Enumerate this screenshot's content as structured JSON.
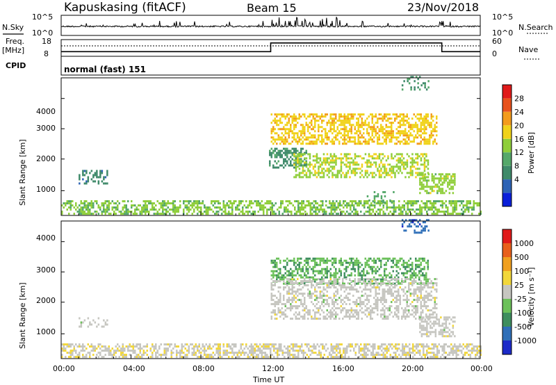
{
  "header": {
    "station": "Kapuskasing (fitACF)",
    "beam": "Beam 15",
    "date": "23/Nov/2018"
  },
  "noise_panel": {
    "left_label": "N.Sky",
    "right_label": "N.Search",
    "left_ticks": [
      "10^5",
      "10^0"
    ],
    "right_ticks": [
      "10^5",
      "10^0"
    ]
  },
  "freq_panel": {
    "left_label_1": "Freq.",
    "left_label_2": "[MHz]",
    "right_label": "Nave",
    "left_ticks": [
      "18",
      "8"
    ],
    "right_ticks": [
      "60",
      "0"
    ],
    "freq_step_times_hr": [
      0,
      12.0,
      21.8,
      24
    ],
    "freq_levels": [
      0.72,
      0.2,
      0.72
    ]
  },
  "cpid": {
    "label": "CPID",
    "value": "normal (fast) 151"
  },
  "power_panel": {
    "ylabel": "Slant Range [km]",
    "yticks": [
      "4000",
      "3000",
      "2000",
      "1000"
    ],
    "colorbar_title": "Power [dB]",
    "colorbar_ticks": [
      "28",
      "24",
      "20",
      "16",
      "12",
      "8",
      "4"
    ]
  },
  "velocity_panel": {
    "ylabel": "Slant Range [km]",
    "yticks": [
      "4000",
      "3000",
      "2000",
      "1000"
    ],
    "colorbar_title": "Velocity [m s⁻¹]",
    "colorbar_ticks": [
      "1000",
      "500",
      "100",
      "25",
      "-25",
      "-100",
      "-500",
      "-1000"
    ]
  },
  "xaxis": {
    "label": "Time UT",
    "ticks": [
      "00:00",
      "04:00",
      "08:00",
      "12:00",
      "16:00",
      "20:00",
      "00:00"
    ]
  },
  "colors": {
    "power_scale": [
      "#0a1fd9",
      "#2d63b5",
      "#3f8a6a",
      "#55a86a",
      "#8fce3a",
      "#f0d21a",
      "#f39b1c",
      "#e8521c",
      "#e01a1a"
    ],
    "velocity_scale": [
      "#1c2ac8",
      "#2f6fb8",
      "#3e8e5e",
      "#6cc15a",
      "#c6c6c0",
      "#f2d73a",
      "#f0a020",
      "#e8601c",
      "#e01a1a"
    ]
  },
  "chart_data": [
    {
      "type": "heatmap",
      "title": "Power [dB]",
      "xlabel": "Time UT",
      "ylabel": "Slant Range [km]",
      "xlim_hours": [
        0,
        24
      ],
      "ylim_km": [
        180,
        4500
      ],
      "zlim": [
        0,
        30
      ],
      "regions": [
        {
          "t0": 0.0,
          "t1": 24.0,
          "r0": 200,
          "r1": 650,
          "level": 14,
          "density": 0.55
        },
        {
          "t0": 1.0,
          "t1": 2.6,
          "r0": 1150,
          "r1": 1550,
          "level": 8,
          "density": 0.35
        },
        {
          "t0": 11.9,
          "t1": 14.0,
          "r0": 1650,
          "r1": 2300,
          "level": 9,
          "density": 0.5
        },
        {
          "t0": 12.0,
          "t1": 21.5,
          "r0": 2400,
          "r1": 3350,
          "level": 19,
          "density": 0.55
        },
        {
          "t0": 13.3,
          "t1": 21.0,
          "r0": 1350,
          "r1": 2100,
          "level": 16,
          "density": 0.5
        },
        {
          "t0": 20.5,
          "t1": 22.5,
          "r0": 850,
          "r1": 1450,
          "level": 15,
          "density": 0.55
        },
        {
          "t0": 17.5,
          "t1": 19.0,
          "r0": 550,
          "r1": 900,
          "level": 12,
          "density": 0.2
        },
        {
          "t0": 19.5,
          "t1": 21.0,
          "r0": 4100,
          "r1": 4500,
          "level": 10,
          "density": 0.25
        }
      ]
    },
    {
      "type": "heatmap",
      "title": "Velocity [m s⁻¹]",
      "xlabel": "Time UT",
      "ylabel": "Slant Range [km]",
      "xlim_hours": [
        0,
        24
      ],
      "ylim_km": [
        180,
        4500
      ],
      "zlim": [
        -1000,
        1000
      ],
      "regions": [
        {
          "t0": 0.0,
          "t1": 24.0,
          "r0": 200,
          "r1": 650,
          "level": 60,
          "density": 0.55
        },
        {
          "t0": 1.0,
          "t1": 2.6,
          "r0": 1150,
          "r1": 1450,
          "level": 0,
          "density": 0.3
        },
        {
          "t0": 12.0,
          "t1": 21.0,
          "r0": 2500,
          "r1": 3300,
          "level": -300,
          "density": 0.5
        },
        {
          "t0": 12.0,
          "t1": 21.5,
          "r0": 1400,
          "r1": 2700,
          "level": 0,
          "density": 0.45
        },
        {
          "t0": 20.5,
          "t1": 22.5,
          "r0": 850,
          "r1": 1450,
          "level": 0,
          "density": 0.5
        },
        {
          "t0": 19.5,
          "t1": 21.0,
          "r0": 4100,
          "r1": 4500,
          "level": -700,
          "density": 0.25
        }
      ]
    }
  ]
}
